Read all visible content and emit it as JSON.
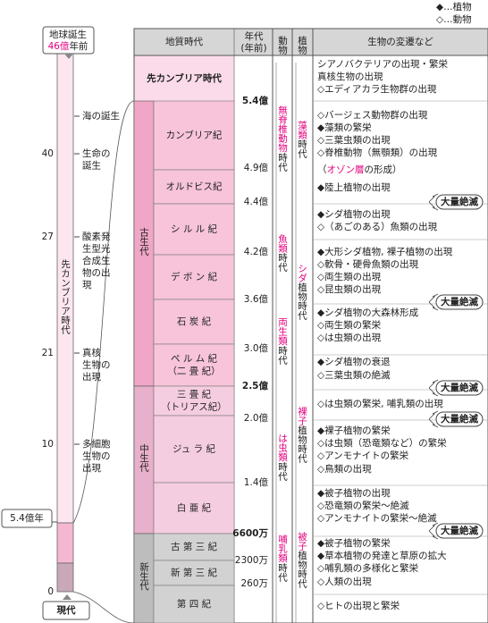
{
  "legend": [
    "◆…植物",
    "◇…動物"
  ],
  "timeline": {
    "start_label": "地球誕生",
    "start_age": "46億",
    "start_unit": "年前",
    "era_label": "先カンブリア時代",
    "ticks": [
      "40",
      "27",
      "21",
      "10",
      "0"
    ],
    "events": [
      [
        "海の誕生"
      ],
      [
        "生命の",
        "誕生"
      ],
      [
        "酸素発",
        "生型光",
        "合成生",
        "物の出",
        "現"
      ],
      [
        "真核",
        "生物の",
        "出現"
      ],
      [
        "多細胞",
        "生物の",
        "出現"
      ]
    ],
    "marker": "5.4億年",
    "end_label": "現代"
  },
  "table": {
    "headers": {
      "period": "地質時代",
      "age": [
        "年代",
        "(年前)"
      ],
      "animal": "動物",
      "plant": "植物",
      "life": "生物の変遷など"
    },
    "precambrian": "先カンブリア時代",
    "eras": [
      "古生代",
      "中生代",
      "新生代"
    ],
    "periods": [
      [
        "カンブリア紀"
      ],
      [
        "オルドビス紀"
      ],
      [
        "シ ル ル 紀"
      ],
      [
        "デ ボ ン 紀"
      ],
      [
        "石 炭 紀"
      ],
      [
        "ペ ル ム 紀",
        "（二 畳 紀）"
      ],
      [
        "三 畳 紀",
        "（トリアス紀）"
      ],
      [
        "ジュ ラ 紀"
      ],
      [
        "白 亜 紀"
      ],
      [
        "古 第 三 紀"
      ],
      [
        "新 第 三 紀"
      ],
      [
        "第 四 紀"
      ]
    ],
    "ages": [
      "5.4億",
      "4.9億",
      "4.4億",
      "4.2億",
      "3.6億",
      "3.0億",
      "2.5億",
      "2.0億",
      "1.4億",
      "6600万",
      "2300万",
      "260万"
    ],
    "animal_ages": [
      [
        "無脊椎動物",
        "時代"
      ],
      [
        "魚類",
        "時代"
      ],
      [
        "両生類",
        "時代"
      ],
      [
        "は虫類",
        "時代"
      ],
      [
        "哺乳類",
        "時代"
      ]
    ],
    "plant_ages": [
      [
        "藻類",
        "時代"
      ],
      [
        "シダ",
        "植物時代"
      ],
      [
        "裸子",
        "植物時代"
      ],
      [
        "被子",
        "植物時代"
      ]
    ],
    "events": [
      "シアノバクテリアの出現・繁栄",
      "真核生物の出現",
      "◇エディアカラ生物群の出現",
      "◇バージェス動物群の出現",
      "◆藻類の繁栄",
      "◇三葉虫類の出現",
      "◇脊椎動物（無顎類）の出現",
      [
        "（",
        "オゾン層",
        "の形成）"
      ],
      "◆陸上植物の出現",
      "◆シダ植物の出現",
      "◇（あごのある）魚類の出現",
      "◆大形シダ植物, 裸子植物の出現",
      "◇軟骨・硬骨魚類の出現",
      "◇両生類の出現",
      "◇昆虫類の出現",
      "◆シダ植物の大森林形成",
      "◇両生類の繁栄",
      "◇は虫類の出現",
      "◆シダ植物の衰退",
      "◇三葉虫類の絶滅",
      "◇は虫類の繁栄, 哺乳類の出現",
      "◆裸子植物の繁栄",
      "◇は虫類（恐竜類など）の繁栄",
      "◇アンモナイトの繁栄",
      "◇鳥類の出現",
      "◆被子植物の出現",
      "◇恐竜類の繁栄～絶滅",
      "◇アンモナイトの繁栄～絶滅",
      "◆被子植物の繁栄",
      "◆草本植物の発達と草原の拡大",
      "◇哺乳類の多様化と繁栄",
      "◇人類の出現",
      "◇ヒトの出現と繁栄"
    ],
    "extinction": [
      "大量絶滅",
      "大量絶滅",
      "大量絶滅",
      "大量絶滅",
      "大量絶滅"
    ]
  }
}
